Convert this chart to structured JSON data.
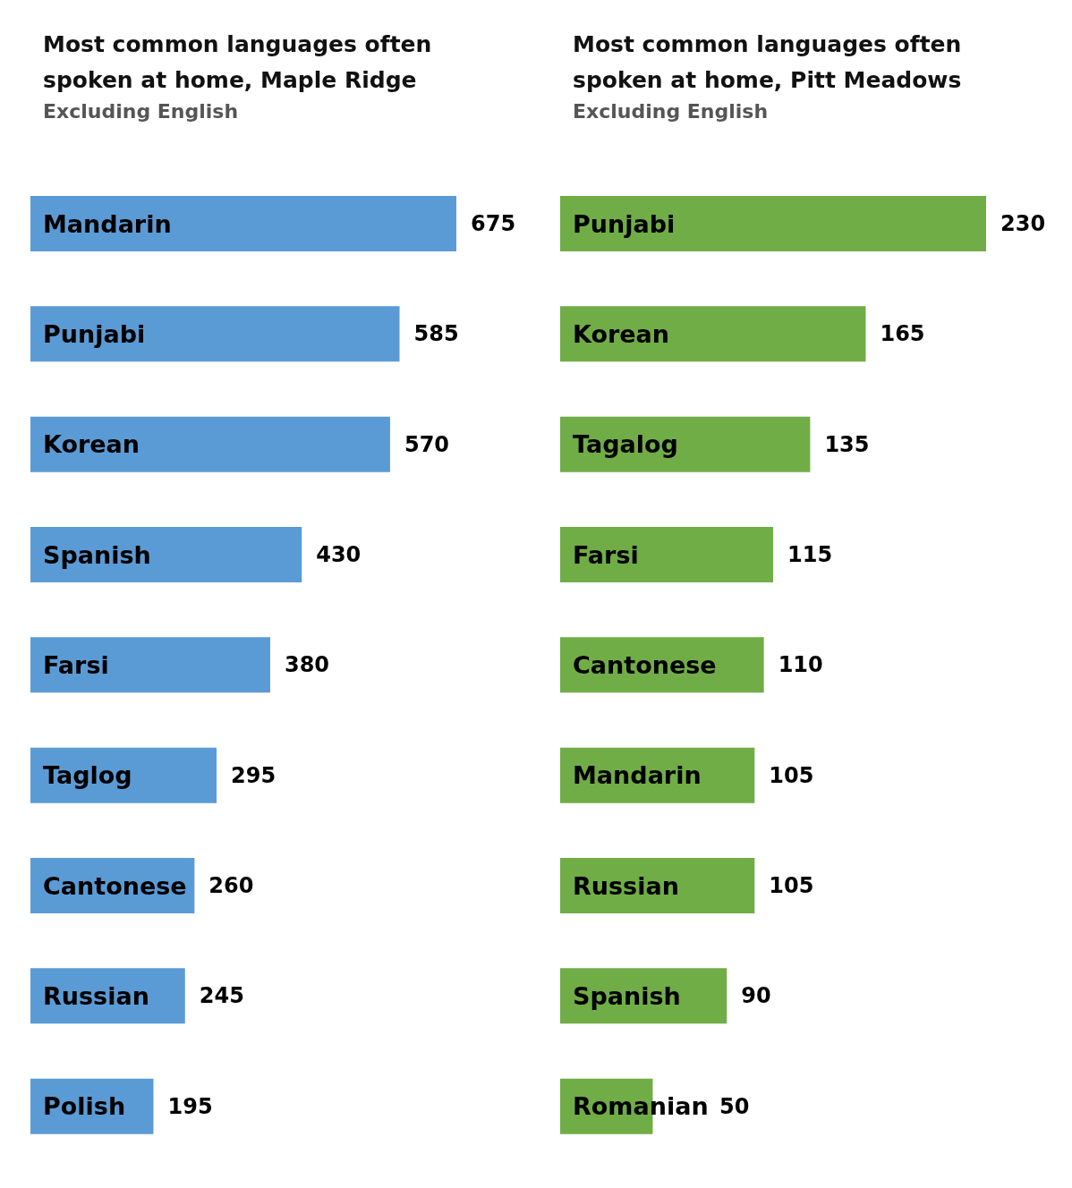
{
  "chart_data": [
    {
      "type": "bar",
      "orientation": "horizontal",
      "title": "Most common languages often spoken at home, Maple Ridge",
      "subtitle": "Excluding English",
      "categories": [
        "Mandarin",
        "Punjabi",
        "Korean",
        "Spanish",
        "Farsi",
        "Taglog",
        "Cantonese",
        "Russian",
        "Polish"
      ],
      "values": [
        675,
        585,
        570,
        430,
        380,
        295,
        260,
        245,
        195
      ],
      "color": "#5b9bd5",
      "data_labels": true
    },
    {
      "type": "bar",
      "orientation": "horizontal",
      "title": "Most common languages often spoken at home, Pitt Meadows",
      "subtitle": "Excluding English",
      "categories": [
        "Punjabi",
        "Korean",
        "Tagalog",
        "Farsi",
        "Cantonese",
        "Mandarin",
        "Russian",
        "Spanish",
        "Romanian"
      ],
      "values": [
        230,
        165,
        135,
        115,
        110,
        105,
        105,
        90,
        50
      ],
      "color": "#70ad47",
      "data_labels": true
    }
  ]
}
